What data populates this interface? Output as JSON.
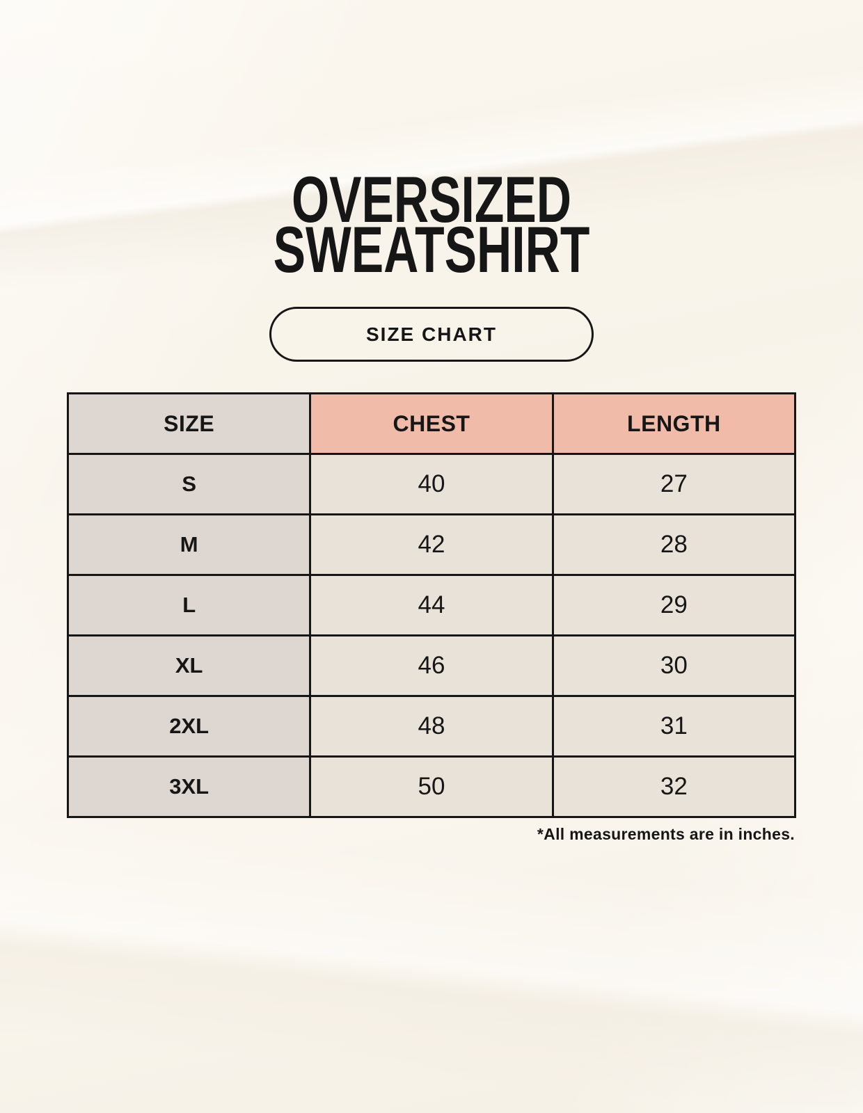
{
  "header": {
    "title_line1": "OVERSIZED",
    "title_line2": "SWEATSHIRT",
    "badge_label": "SIZE CHART"
  },
  "chart_data": {
    "type": "table",
    "title": "OVERSIZED SWEATSHIRT",
    "subtitle": "SIZE CHART",
    "columns": [
      "SIZE",
      "CHEST",
      "LENGTH"
    ],
    "rows": [
      [
        "S",
        40,
        27
      ],
      [
        "M",
        42,
        28
      ],
      [
        "L",
        44,
        29
      ],
      [
        "XL",
        46,
        30
      ],
      [
        "2XL",
        48,
        31
      ],
      [
        "3XL",
        50,
        32
      ]
    ],
    "units": "inches",
    "note": "*All measurements are in inches."
  },
  "footnote": "*All measurements are in inches.",
  "colors": {
    "page_background": "#f9f5ec",
    "header_accent": "#f0bca9",
    "size_column": "#ddd6d1",
    "data_cell": "#e9e2d8",
    "border": "#161616",
    "text": "#161616"
  }
}
